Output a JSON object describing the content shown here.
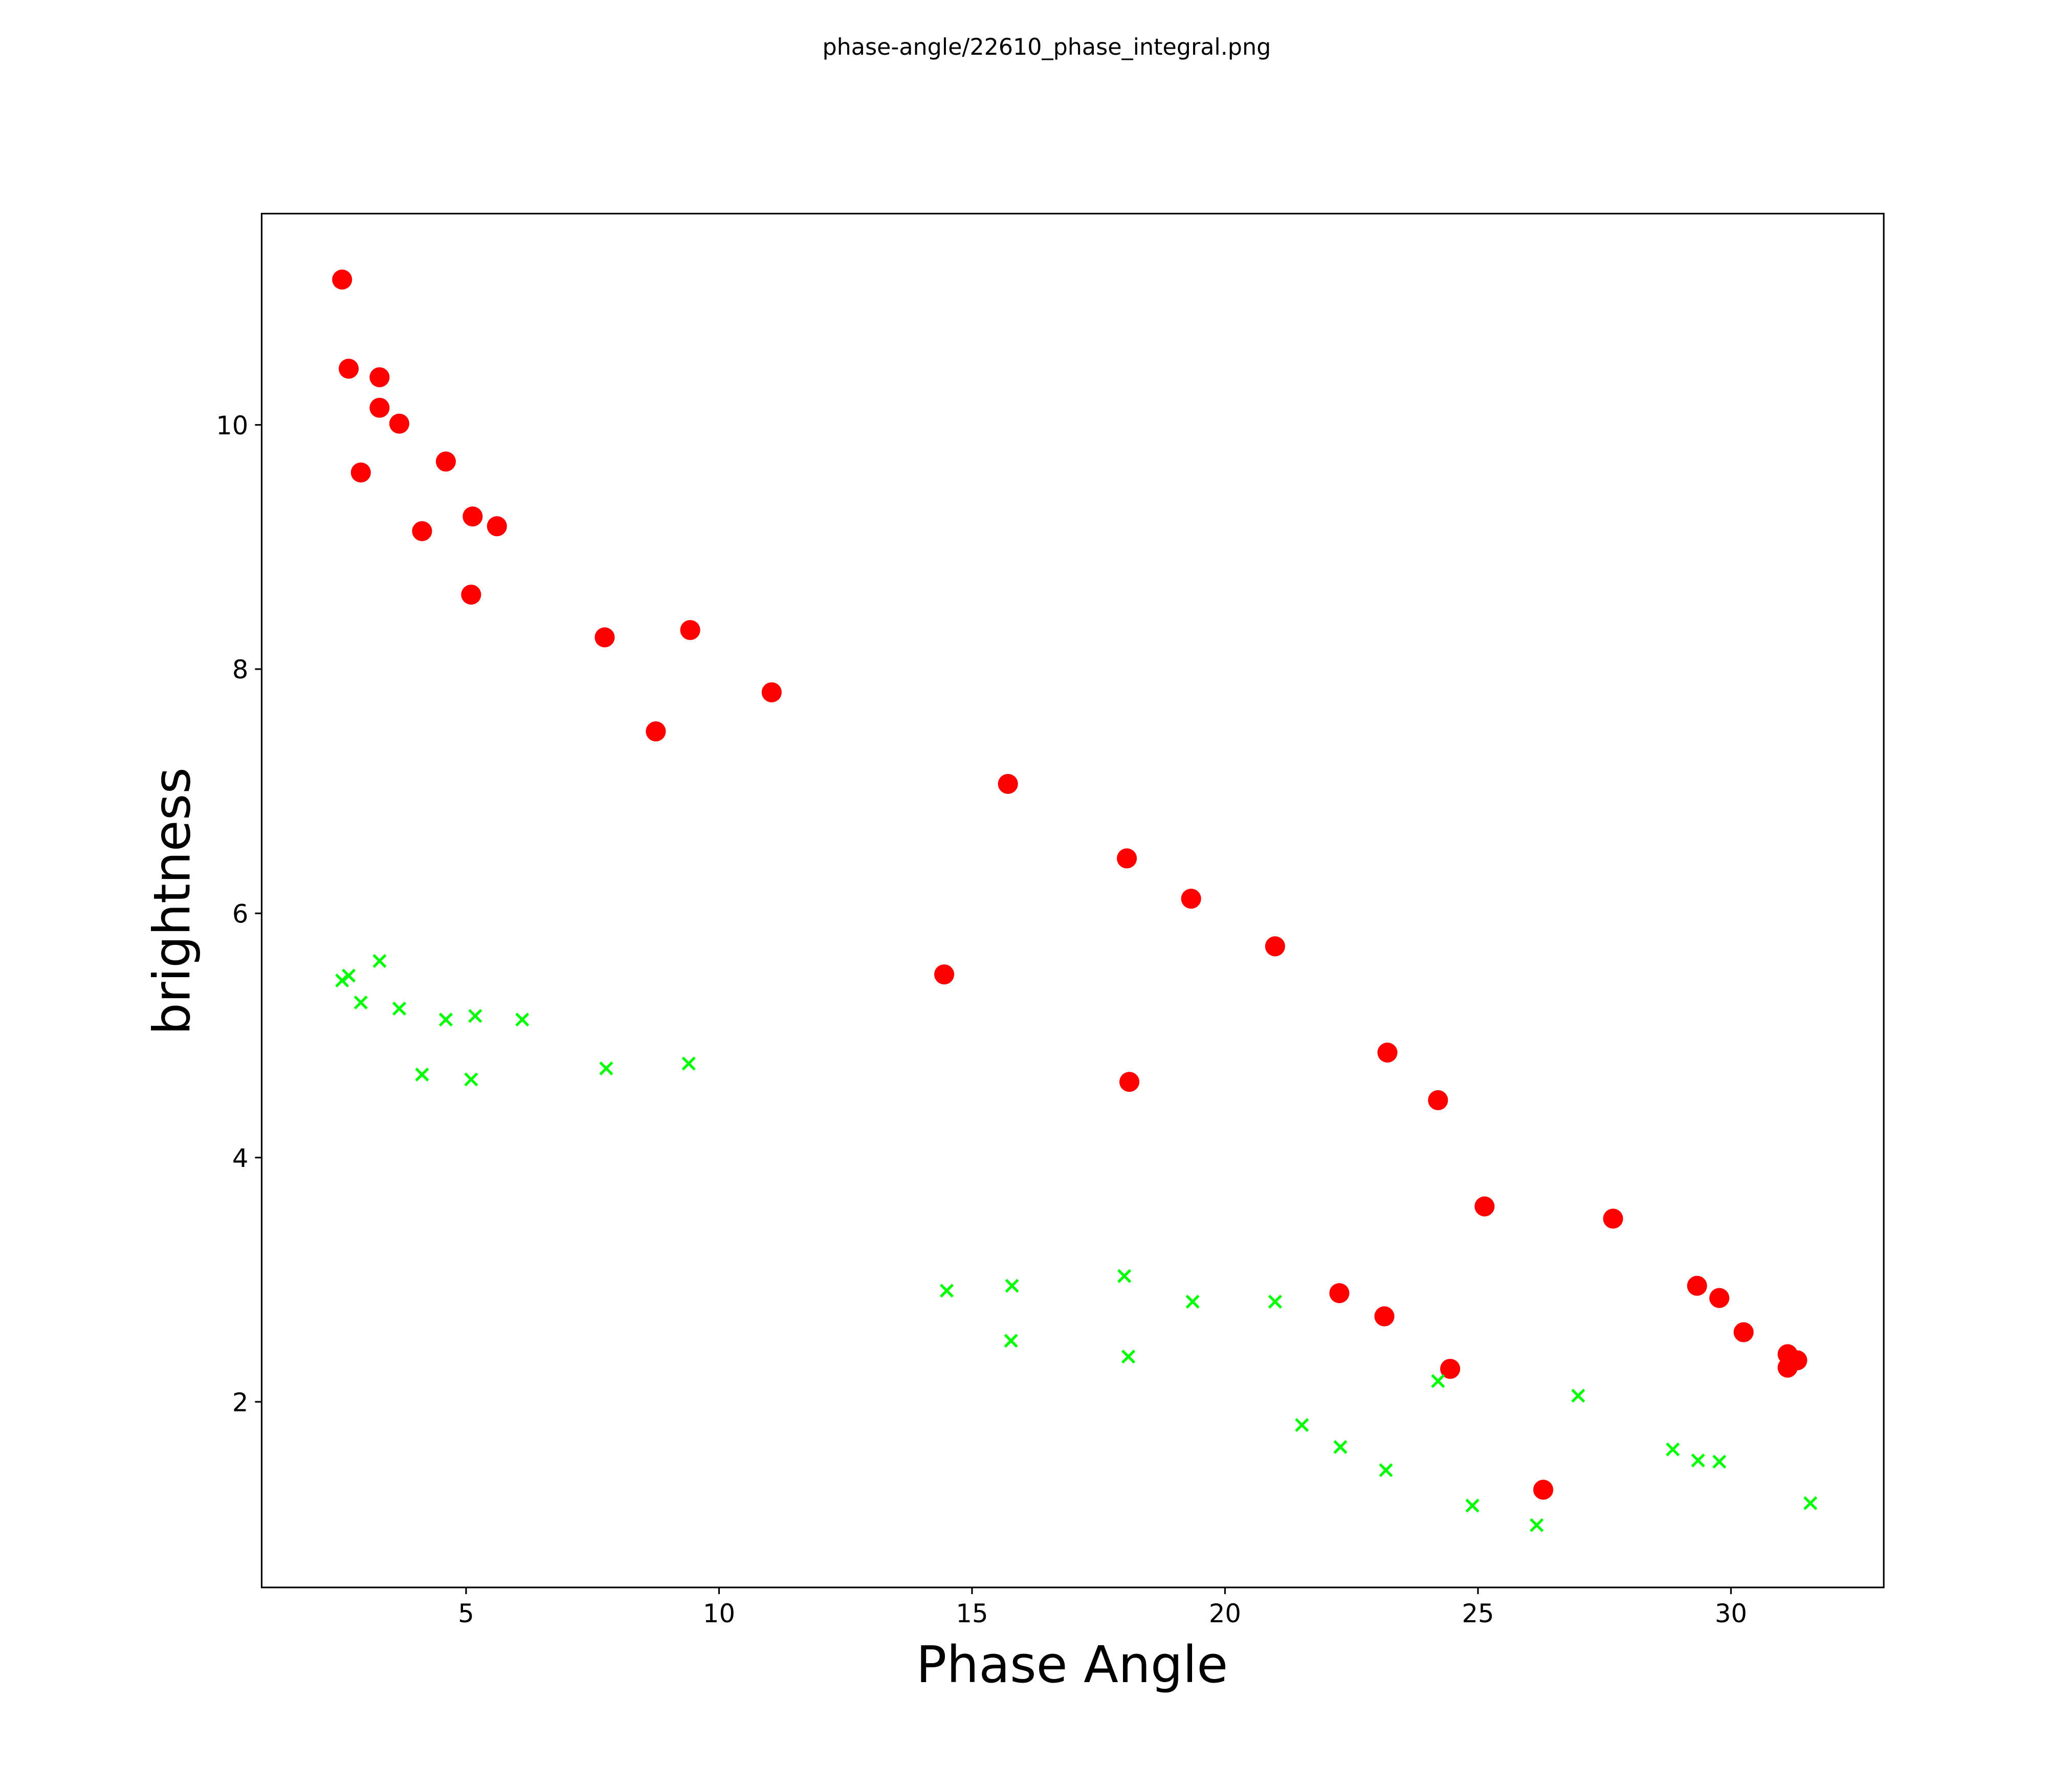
{
  "chart_data": {
    "type": "scatter",
    "title": "phase-angle/22610_phase_integral.png",
    "xlabel": "Phase Angle",
    "ylabel": "brightness",
    "xlim": [
      0.96,
      33.02
    ],
    "ylim": [
      0.48,
      11.73
    ],
    "xticks": [
      5,
      10,
      15,
      20,
      25,
      30
    ],
    "yticks": [
      2,
      4,
      6,
      8,
      10
    ],
    "grid": false,
    "series": [
      {
        "name": "red-circles",
        "marker": "circle",
        "color": "#ff0000",
        "points": [
          [
            2.55,
            11.19
          ],
          [
            2.68,
            10.46
          ],
          [
            3.29,
            10.39
          ],
          [
            3.29,
            10.14
          ],
          [
            3.68,
            10.01
          ],
          [
            2.92,
            9.61
          ],
          [
            4.6,
            9.7
          ],
          [
            4.13,
            9.13
          ],
          [
            5.13,
            9.25
          ],
          [
            5.61,
            9.17
          ],
          [
            5.1,
            8.61
          ],
          [
            7.74,
            8.26
          ],
          [
            9.43,
            8.32
          ],
          [
            8.75,
            7.49
          ],
          [
            11.04,
            7.81
          ],
          [
            15.71,
            7.06
          ],
          [
            18.06,
            6.45
          ],
          [
            19.33,
            6.12
          ],
          [
            20.99,
            5.73
          ],
          [
            14.45,
            5.5
          ],
          [
            18.11,
            4.62
          ],
          [
            23.21,
            4.86
          ],
          [
            24.21,
            4.47
          ],
          [
            25.13,
            3.6
          ],
          [
            27.67,
            3.5
          ],
          [
            22.26,
            2.89
          ],
          [
            23.15,
            2.7
          ],
          [
            24.45,
            2.27
          ],
          [
            29.33,
            2.95
          ],
          [
            29.77,
            2.85
          ],
          [
            30.25,
            2.57
          ],
          [
            31.12,
            2.39
          ],
          [
            31.31,
            2.34
          ],
          [
            31.12,
            2.28
          ],
          [
            26.29,
            1.28
          ]
        ]
      },
      {
        "name": "green-crosses",
        "marker": "x",
        "color": "#00ff00",
        "points": [
          [
            2.55,
            5.45
          ],
          [
            2.68,
            5.49
          ],
          [
            3.29,
            5.61
          ],
          [
            2.92,
            5.27
          ],
          [
            3.68,
            5.22
          ],
          [
            4.6,
            5.13
          ],
          [
            5.18,
            5.16
          ],
          [
            6.11,
            5.13
          ],
          [
            4.13,
            4.68
          ],
          [
            5.1,
            4.64
          ],
          [
            7.77,
            4.73
          ],
          [
            9.4,
            4.77
          ],
          [
            14.5,
            2.91
          ],
          [
            15.79,
            2.95
          ],
          [
            18.01,
            3.03
          ],
          [
            19.36,
            2.82
          ],
          [
            20.99,
            2.82
          ],
          [
            15.77,
            2.5
          ],
          [
            18.09,
            2.37
          ],
          [
            24.21,
            2.17
          ],
          [
            26.98,
            2.05
          ],
          [
            21.52,
            1.81
          ],
          [
            22.28,
            1.63
          ],
          [
            23.18,
            1.44
          ],
          [
            28.85,
            1.61
          ],
          [
            29.35,
            1.52
          ],
          [
            29.77,
            1.51
          ],
          [
            24.89,
            1.15
          ],
          [
            26.16,
            0.99
          ],
          [
            31.57,
            1.17
          ]
        ]
      }
    ]
  }
}
